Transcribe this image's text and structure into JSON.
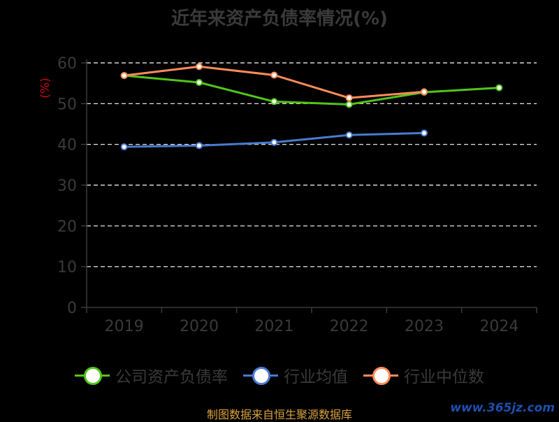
{
  "chart_data": {
    "type": "line",
    "title": "近年来资产负债率情况(%)",
    "ylabel": "(%)",
    "xlabel": "",
    "categories": [
      "2019",
      "2020",
      "2021",
      "2022",
      "2023",
      "2024"
    ],
    "ylim": [
      0,
      60
    ],
    "yticks": [
      0,
      10,
      20,
      30,
      40,
      50,
      60
    ],
    "grid": true,
    "legend_position": "bottom",
    "series": [
      {
        "name": "公司资产负债率",
        "color": "#52c41a",
        "values": [
          56.9,
          55.2,
          50.5,
          49.8,
          52.8,
          53.9
        ]
      },
      {
        "name": "行业均值",
        "color": "#4a7bd0",
        "values": [
          39.4,
          39.7,
          40.5,
          42.3,
          42.8,
          null
        ]
      },
      {
        "name": "行业中位数",
        "color": "#ff8c5a",
        "values": [
          56.9,
          59.1,
          57.0,
          51.4,
          52.9,
          null
        ]
      }
    ]
  },
  "footer": {
    "source": "制图数据来自恒生聚源数据库",
    "watermark": "www.365jz.com"
  }
}
